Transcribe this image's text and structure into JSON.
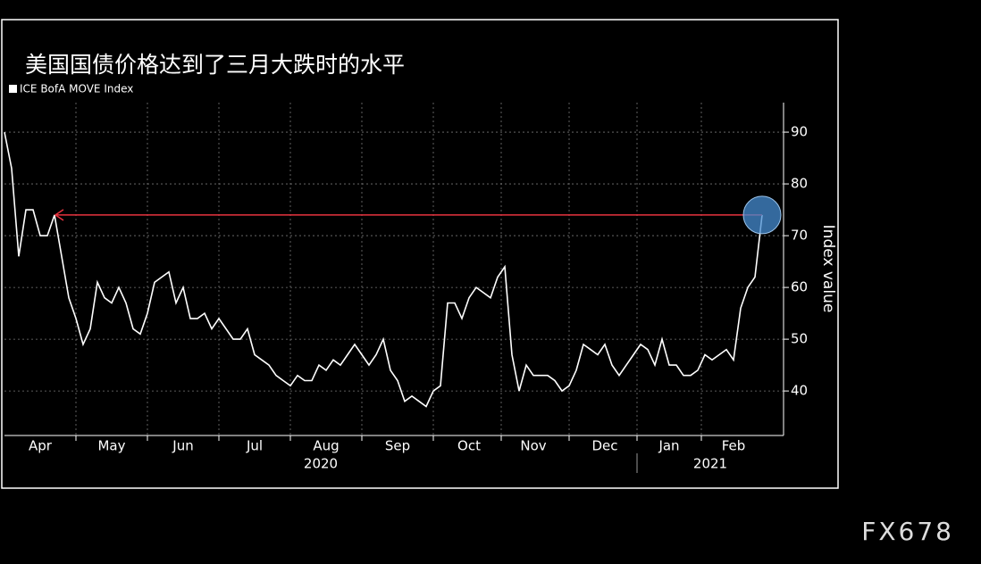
{
  "chart_data": {
    "type": "line",
    "title": "美国国债价格达到了三月大跌时的水平",
    "y_label": "Index value",
    "watermark": "FX678",
    "year_labels": [
      "2020",
      "2021"
    ],
    "categories": [
      null,
      null,
      null,
      null,
      null,
      "Apr",
      null,
      null,
      null,
      null,
      null,
      null,
      null,
      null,
      null,
      "May",
      null,
      null,
      null,
      null,
      null,
      null,
      null,
      null,
      null,
      "Jun",
      null,
      null,
      null,
      null,
      null,
      null,
      null,
      null,
      null,
      "Jul",
      null,
      null,
      null,
      null,
      null,
      null,
      null,
      null,
      null,
      "Aug",
      null,
      null,
      null,
      null,
      null,
      null,
      null,
      null,
      null,
      "Sep",
      null,
      null,
      null,
      null,
      null,
      null,
      null,
      null,
      null,
      "Oct",
      null,
      null,
      null,
      null,
      null,
      null,
      null,
      null,
      "Nov",
      null,
      null,
      null,
      null,
      null,
      null,
      null,
      null,
      null,
      "Dec",
      null,
      null,
      null,
      null,
      null,
      null,
      null,
      null,
      "Jan",
      null,
      null,
      null,
      null,
      null,
      null,
      null,
      null,
      "Feb",
      null,
      null,
      null,
      null
    ],
    "series": [
      {
        "name": "ICE BofA MOVE Index",
        "color": "#ffffff",
        "values": [
          90,
          83,
          66,
          75,
          75,
          70,
          70,
          74,
          66,
          58,
          54,
          49,
          52,
          61,
          58,
          57,
          60,
          57,
          52,
          51,
          55,
          61,
          62,
          63,
          57,
          60,
          54,
          54,
          55,
          52,
          54,
          52,
          50,
          50,
          52,
          47,
          46,
          45,
          43,
          42,
          41,
          43,
          42,
          42,
          45,
          44,
          46,
          45,
          47,
          49,
          47,
          45,
          47,
          50,
          44,
          42,
          38,
          39,
          38,
          37,
          40,
          41,
          57,
          57,
          54,
          58,
          60,
          59,
          58,
          62,
          64,
          47,
          40,
          45,
          43,
          43,
          43,
          42,
          40,
          41,
          44,
          49,
          48,
          47,
          49,
          45,
          43,
          45,
          47,
          49,
          48,
          45,
          50,
          45,
          45,
          43,
          43,
          44,
          47,
          46,
          47,
          48,
          46,
          56,
          60,
          62,
          74
        ]
      }
    ],
    "ylim": [
      31.4,
      95.7
    ],
    "yticks": [
      40,
      50,
      60,
      70,
      80,
      90
    ],
    "grid": true,
    "highlight_color": "#e8333f"
  }
}
